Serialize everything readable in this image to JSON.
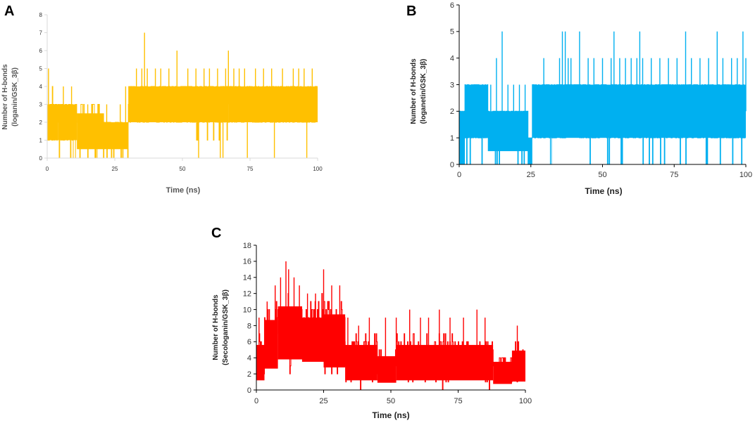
{
  "chart_data": [
    {
      "panel": "A",
      "type": "line",
      "title": "",
      "xlabel": "Time (ns)",
      "ylabel_line1": "Number of H-bonds",
      "ylabel_line2": "(loganin/GSK_3β)",
      "xlim": [
        0,
        100
      ],
      "ylim": [
        0,
        8
      ],
      "xticks": [
        0,
        25,
        50,
        75,
        100
      ],
      "yticks": [
        0,
        1,
        2,
        3,
        4,
        5,
        6,
        7,
        8
      ],
      "grid": false,
      "color": "#FFC000",
      "series": [
        {
          "name": "loganin/GSK_3β",
          "segments": [
            {
              "x": [
                0,
                4
              ],
              "low": 1,
              "high": 4,
              "base": 2
            },
            {
              "x": [
                4,
                11
              ],
              "low": 0,
              "high": 3,
              "base": 2
            },
            {
              "x": [
                11,
                21
              ],
              "low": 0,
              "high": 3,
              "base": 1.5
            },
            {
              "x": [
                21,
                30
              ],
              "low": 0,
              "high": 2,
              "base": 1.5
            },
            {
              "x": [
                30,
                50
              ],
              "low": 2,
              "high": 4,
              "base": 3
            },
            {
              "x": [
                50,
                67
              ],
              "low": 1,
              "high": 4,
              "base": 3
            },
            {
              "x": [
                67,
                100
              ],
              "low": 2,
              "high": 4,
              "base": 3
            }
          ],
          "spikes": [
            {
              "x": 0.5,
              "y": 5
            },
            {
              "x": 4.5,
              "y": 0
            },
            {
              "x": 6,
              "y": 4
            },
            {
              "x": 9,
              "y": 4
            },
            {
              "x": 15,
              "y": 3
            },
            {
              "x": 22,
              "y": 3
            },
            {
              "x": 27,
              "y": 3
            },
            {
              "x": 29,
              "y": 4
            },
            {
              "x": 33,
              "y": 5
            },
            {
              "x": 35,
              "y": 5
            },
            {
              "x": 36,
              "y": 7
            },
            {
              "x": 37,
              "y": 5
            },
            {
              "x": 40,
              "y": 5
            },
            {
              "x": 42,
              "y": 5
            },
            {
              "x": 45,
              "y": 5
            },
            {
              "x": 48,
              "y": 6
            },
            {
              "x": 52,
              "y": 5
            },
            {
              "x": 55,
              "y": 5
            },
            {
              "x": 56,
              "y": 0
            },
            {
              "x": 58,
              "y": 5
            },
            {
              "x": 60,
              "y": 5
            },
            {
              "x": 63,
              "y": 5
            },
            {
              "x": 64,
              "y": 0
            },
            {
              "x": 65,
              "y": 0
            },
            {
              "x": 66,
              "y": 5
            },
            {
              "x": 67,
              "y": 6
            },
            {
              "x": 69,
              "y": 5
            },
            {
              "x": 71,
              "y": 5
            },
            {
              "x": 73,
              "y": 5
            },
            {
              "x": 74,
              "y": 0
            },
            {
              "x": 77,
              "y": 5
            },
            {
              "x": 80,
              "y": 5
            },
            {
              "x": 83,
              "y": 5
            },
            {
              "x": 84,
              "y": 0
            },
            {
              "x": 87,
              "y": 5
            },
            {
              "x": 91,
              "y": 5
            },
            {
              "x": 93,
              "y": 5
            },
            {
              "x": 95,
              "y": 5
            },
            {
              "x": 96,
              "y": 0
            },
            {
              "x": 98,
              "y": 5
            }
          ]
        }
      ]
    },
    {
      "panel": "B",
      "type": "line",
      "title": "",
      "xlabel": "Time (ns)",
      "ylabel_line1": "Number of H-bonds",
      "ylabel_line2": "(loganetin/GSK_3β)",
      "xlim": [
        0,
        100
      ],
      "ylim": [
        0,
        6
      ],
      "xticks": [
        0,
        25,
        50,
        75,
        100
      ],
      "yticks": [
        0,
        1,
        2,
        3,
        4,
        5,
        6
      ],
      "grid": false,
      "color": "#00B0F0",
      "series": [
        {
          "name": "loganetin/GSK_3β",
          "segments": [
            {
              "x": [
                0,
                2
              ],
              "low": 0,
              "high": 2,
              "base": 1
            },
            {
              "x": [
                2,
                10
              ],
              "low": 0,
              "high": 3,
              "base": 2
            },
            {
              "x": [
                10,
                24
              ],
              "low": 0,
              "high": 2,
              "base": 1.5
            },
            {
              "x": [
                24,
                25.5
              ],
              "low": 0,
              "high": 1,
              "base": 1
            },
            {
              "x": [
                25.5,
                35
              ],
              "low": 0,
              "high": 3,
              "base": 2
            },
            {
              "x": [
                35,
                100
              ],
              "low": 0,
              "high": 3,
              "base": 2
            }
          ],
          "spikes": [
            {
              "x": 3,
              "y": 3
            },
            {
              "x": 5,
              "y": 3
            },
            {
              "x": 7,
              "y": 3
            },
            {
              "x": 9,
              "y": 3
            },
            {
              "x": 11,
              "y": 3
            },
            {
              "x": 13,
              "y": 4
            },
            {
              "x": 15,
              "y": 5
            },
            {
              "x": 17,
              "y": 3
            },
            {
              "x": 19,
              "y": 3
            },
            {
              "x": 21,
              "y": 3
            },
            {
              "x": 23,
              "y": 3
            },
            {
              "x": 29.5,
              "y": 4
            },
            {
              "x": 31,
              "y": 3
            },
            {
              "x": 35,
              "y": 4
            },
            {
              "x": 36,
              "y": 5
            },
            {
              "x": 37,
              "y": 5
            },
            {
              "x": 38,
              "y": 4
            },
            {
              "x": 39,
              "y": 4
            },
            {
              "x": 42,
              "y": 5
            },
            {
              "x": 45,
              "y": 4
            },
            {
              "x": 47,
              "y": 4
            },
            {
              "x": 50,
              "y": 4
            },
            {
              "x": 53,
              "y": 4
            },
            {
              "x": 54,
              "y": 5
            },
            {
              "x": 56,
              "y": 4
            },
            {
              "x": 58,
              "y": 4
            },
            {
              "x": 60,
              "y": 4
            },
            {
              "x": 62,
              "y": 4
            },
            {
              "x": 63,
              "y": 5
            },
            {
              "x": 64,
              "y": 4
            },
            {
              "x": 67,
              "y": 4
            },
            {
              "x": 70,
              "y": 4
            },
            {
              "x": 73,
              "y": 4
            },
            {
              "x": 76,
              "y": 4
            },
            {
              "x": 79,
              "y": 5
            },
            {
              "x": 81,
              "y": 4
            },
            {
              "x": 84,
              "y": 4
            },
            {
              "x": 87,
              "y": 4
            },
            {
              "x": 90,
              "y": 5
            },
            {
              "x": 92,
              "y": 4
            },
            {
              "x": 95,
              "y": 4
            },
            {
              "x": 97,
              "y": 4
            },
            {
              "x": 99,
              "y": 5
            },
            {
              "x": 100,
              "y": 4
            }
          ]
        }
      ]
    },
    {
      "panel": "C",
      "type": "line",
      "title": "",
      "xlabel": "Time (ns)",
      "ylabel_line1": "Number of H-bonds",
      "ylabel_line2": "(Secologanin/GSK_3β)",
      "xlim": [
        0,
        100
      ],
      "ylim": [
        0,
        18
      ],
      "xticks": [
        0,
        25,
        50,
        75,
        100
      ],
      "yticks": [
        0,
        2,
        4,
        6,
        8,
        10,
        12,
        14,
        16,
        18
      ],
      "grid": false,
      "color": "#FF0000",
      "series": [
        {
          "name": "Secologanin/GSK_3β",
          "segments": [
            {
              "x": [
                0,
                3
              ],
              "low": 0,
              "high": 8,
              "base": 3
            },
            {
              "x": [
                3,
                8
              ],
              "low": 1,
              "high": 12,
              "base": 6
            },
            {
              "x": [
                8,
                17
              ],
              "low": 2,
              "high": 14,
              "base": 8
            },
            {
              "x": [
                17,
                25
              ],
              "low": 2,
              "high": 12,
              "base": 6
            },
            {
              "x": [
                25,
                33
              ],
              "low": 1,
              "high": 13,
              "base": 7
            },
            {
              "x": [
                33,
                45
              ],
              "low": 0,
              "high": 8,
              "base": 3
            },
            {
              "x": [
                45,
                52
              ],
              "low": 0,
              "high": 6,
              "base": 2
            },
            {
              "x": [
                52,
                88
              ],
              "low": 0,
              "high": 8,
              "base": 4
            },
            {
              "x": [
                88,
                95
              ],
              "low": 0,
              "high": 5,
              "base": 2
            },
            {
              "x": [
                95,
                100
              ],
              "low": 0,
              "high": 7,
              "base": 4
            }
          ],
          "spikes": [
            {
              "x": 1,
              "y": 9
            },
            {
              "x": 4,
              "y": 11
            },
            {
              "x": 7,
              "y": 13
            },
            {
              "x": 9,
              "y": 14
            },
            {
              "x": 11,
              "y": 16
            },
            {
              "x": 12,
              "y": 15
            },
            {
              "x": 14,
              "y": 14
            },
            {
              "x": 16,
              "y": 13
            },
            {
              "x": 19,
              "y": 12
            },
            {
              "x": 22,
              "y": 12
            },
            {
              "x": 25,
              "y": 15
            },
            {
              "x": 28,
              "y": 13
            },
            {
              "x": 31,
              "y": 13
            },
            {
              "x": 34,
              "y": 9
            },
            {
              "x": 38,
              "y": 8
            },
            {
              "x": 42,
              "y": 9
            },
            {
              "x": 48,
              "y": 9
            },
            {
              "x": 52,
              "y": 9
            },
            {
              "x": 57,
              "y": 10
            },
            {
              "x": 61,
              "y": 9
            },
            {
              "x": 64,
              "y": 9
            },
            {
              "x": 68,
              "y": 10
            },
            {
              "x": 72,
              "y": 9
            },
            {
              "x": 77,
              "y": 9
            },
            {
              "x": 82,
              "y": 10
            },
            {
              "x": 85,
              "y": 9
            },
            {
              "x": 97,
              "y": 8
            }
          ]
        }
      ]
    }
  ]
}
